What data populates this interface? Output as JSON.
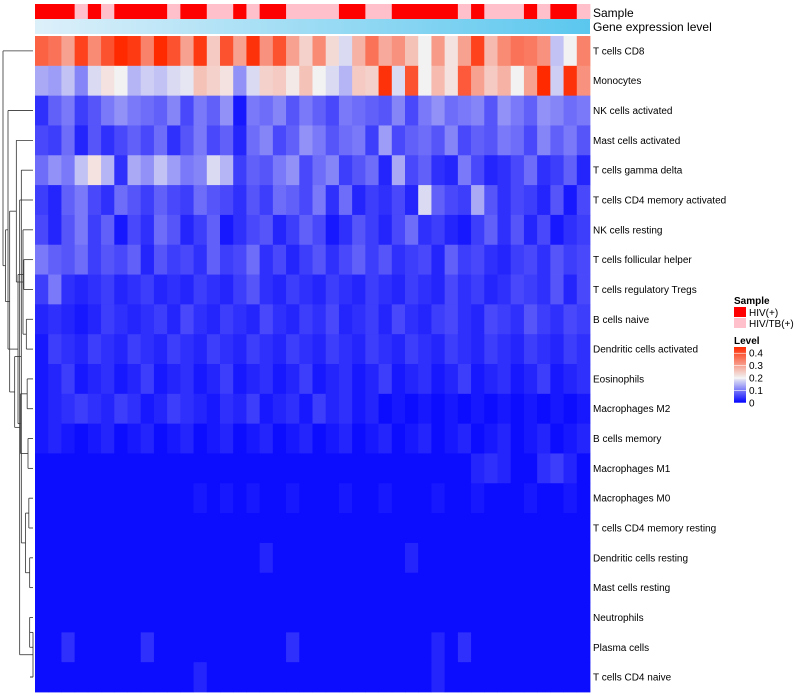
{
  "colors": {
    "sample_hiv": "#FF0000",
    "sample_hiv_tb": "#FFC0CB",
    "scale_low": "#0000FF",
    "scale_mid": "#F2F2F2",
    "scale_high": "#FF2A00",
    "gene_expr_low": "#DDF0FA",
    "gene_expr_high": "#5BC7EE",
    "dendrogram": "#333333"
  },
  "chart_data": {
    "type": "heatmap",
    "title": "",
    "row_labels": [
      "T cells CD8",
      "Monocytes",
      "NK cells activated",
      "Mast cells activated",
      "T cells gamma delta",
      "T cells CD4 memory activated",
      "NK cells resting",
      "T cells follicular helper",
      "T cells regulatory  Tregs",
      "B cells naive",
      "Dendritic cells activated",
      "Eosinophils",
      "Macrophages M2",
      "B cells memory",
      "Macrophages M1",
      "Macrophages M0",
      "T cells CD4 memory resting",
      "Dendritic cells resting",
      "Mast cells resting",
      "Neutrophils",
      "Plasma cells",
      "T cells CD4 naive"
    ],
    "n_columns": 42,
    "annotations": [
      {
        "label": "Sample",
        "values": [
          "HIV(+)",
          "HIV(+)",
          "HIV(+)",
          "HIV/TB(+)",
          "HIV(+)",
          "HIV/TB(+)",
          "HIV(+)",
          "HIV(+)",
          "HIV(+)",
          "HIV(+)",
          "HIV/TB(+)",
          "HIV(+)",
          "HIV(+)",
          "HIV/TB(+)",
          "HIV/TB(+)",
          "HIV(+)",
          "HIV/TB(+)",
          "HIV(+)",
          "HIV(+)",
          "HIV/TB(+)",
          "HIV/TB(+)",
          "HIV/TB(+)",
          "HIV/TB(+)",
          "HIV(+)",
          "HIV(+)",
          "HIV/TB(+)",
          "HIV/TB(+)",
          "HIV(+)",
          "HIV(+)",
          "HIV(+)",
          "HIV(+)",
          "HIV(+)",
          "HIV/TB(+)",
          "HIV(+)",
          "HIV/TB(+)",
          "HIV/TB(+)",
          "HIV/TB(+)",
          "HIV(+)",
          "HIV/TB(+)",
          "HIV(+)",
          "HIV(+)",
          "HIV/TB(+)"
        ]
      },
      {
        "label": "Gene expression level",
        "gradient": true
      }
    ],
    "legend": {
      "position": "right",
      "sample_title": "Sample",
      "sample_items": [
        {
          "label": "HIV(+)",
          "color": "#FF0000"
        },
        {
          "label": "HIV/TB(+)",
          "color": "#FFC0CB"
        }
      ],
      "level_title": "Level",
      "level_ticks": [
        {
          "value": 0.4,
          "label": "0.4"
        },
        {
          "value": 0.3,
          "label": "0.3"
        },
        {
          "value": 0.2,
          "label": "0.2"
        },
        {
          "value": 0.1,
          "label": "0.1"
        },
        {
          "value": 0.0,
          "label": "0"
        }
      ]
    },
    "color_scale": {
      "min": 0,
      "mid": 0.2,
      "max": 0.45
    },
    "row_dendrogram": {
      "parents": [
        -1,
        0,
        0,
        2,
        2,
        3,
        3,
        4,
        4,
        5,
        5,
        6,
        6,
        8,
        8,
        9,
        9,
        10,
        10,
        11,
        11,
        13,
        13,
        14,
        14,
        16,
        16,
        18,
        18,
        19,
        19,
        21,
        21,
        22,
        22,
        25,
        25,
        26,
        26,
        27,
        27,
        28,
        28
      ],
      "leaf_rows": [
        -1,
        0,
        -1,
        -1,
        -1,
        -1,
        -1,
        -1,
        -1,
        -1,
        -1,
        -1,
        -1,
        -1,
        -1,
        -1,
        -1,
        -1,
        1,
        -1,
        -1,
        -1,
        -1,
        -1,
        -1,
        -1,
        -1,
        -1,
        -1,
        -1,
        -1,
        -1,
        -1,
        -1,
        -1,
        -1,
        -1,
        -1,
        -1,
        -1,
        -1,
        -1,
        -1
      ],
      "heights": [
        0.36,
        0,
        0.33,
        0.28,
        0.3,
        0.22,
        0.2,
        0.24,
        0.18,
        0.14,
        0.16,
        0.12,
        0.13,
        0.15,
        0.11,
        0.1,
        0.09,
        0.09,
        0,
        0.08,
        0.07,
        0.07,
        0.06,
        0.06,
        0.05,
        0.05,
        0.04,
        0.04,
        0.035,
        0.035,
        0.03,
        0.03,
        0.02,
        0.02,
        0.015,
        0.015,
        0.01,
        0.01,
        0.01,
        0.005,
        0.005,
        0.005,
        0.005
      ]
    },
    "values": [
      [
        0.38,
        0.36,
        0.3,
        0.42,
        0.33,
        0.4,
        0.45,
        0.43,
        0.34,
        0.45,
        0.4,
        0.3,
        0.43,
        0.25,
        0.4,
        0.3,
        0.44,
        0.32,
        0.4,
        0.3,
        0.24,
        0.33,
        0.23,
        0.18,
        0.28,
        0.36,
        0.29,
        0.32,
        0.26,
        0.2,
        0.31,
        0.22,
        0.3,
        0.42,
        0.27,
        0.33,
        0.36,
        0.35,
        0.32,
        0.16,
        0.2,
        0.34
      ],
      [
        0.14,
        0.13,
        0.16,
        0.11,
        0.18,
        0.22,
        0.2,
        0.15,
        0.17,
        0.16,
        0.18,
        0.19,
        0.26,
        0.24,
        0.22,
        0.12,
        0.18,
        0.24,
        0.25,
        0.21,
        0.26,
        0.2,
        0.18,
        0.15,
        0.25,
        0.24,
        0.44,
        0.18,
        0.4,
        0.2,
        0.27,
        0.22,
        0.39,
        0.3,
        0.25,
        0.28,
        0.2,
        0.3,
        0.45,
        0.17,
        0.44,
        0.32
      ],
      [
        0.04,
        0.08,
        0.1,
        0.05,
        0.07,
        0.1,
        0.12,
        0.1,
        0.09,
        0.08,
        0.11,
        0.06,
        0.1,
        0.08,
        0.12,
        0.02,
        0.1,
        0.09,
        0.11,
        0.07,
        0.1,
        0.08,
        0.06,
        0.1,
        0.09,
        0.08,
        0.07,
        0.11,
        0.06,
        0.1,
        0.12,
        0.09,
        0.1,
        0.11,
        0.07,
        0.12,
        0.1,
        0.08,
        0.12,
        0.11,
        0.09,
        0.1
      ],
      [
        0.06,
        0.05,
        0.09,
        0.03,
        0.07,
        0.04,
        0.06,
        0.08,
        0.06,
        0.09,
        0.04,
        0.07,
        0.1,
        0.06,
        0.08,
        0.03,
        0.09,
        0.11,
        0.06,
        0.08,
        0.12,
        0.1,
        0.07,
        0.09,
        0.1,
        0.05,
        0.13,
        0.06,
        0.08,
        0.09,
        0.07,
        0.11,
        0.06,
        0.08,
        0.07,
        0.1,
        0.09,
        0.06,
        0.11,
        0.08,
        0.1,
        0.07
      ],
      [
        0.09,
        0.12,
        0.1,
        0.16,
        0.22,
        0.15,
        0.04,
        0.14,
        0.12,
        0.16,
        0.13,
        0.1,
        0.11,
        0.18,
        0.15,
        0.05,
        0.08,
        0.07,
        0.1,
        0.12,
        0.06,
        0.09,
        0.11,
        0.05,
        0.07,
        0.09,
        0.03,
        0.14,
        0.06,
        0.08,
        0.04,
        0.03,
        0.1,
        0.06,
        0.03,
        0.04,
        0.06,
        0.09,
        0.04,
        0.05,
        0.08,
        0.03
      ],
      [
        0.05,
        0.03,
        0.08,
        0.1,
        0.06,
        0.04,
        0.09,
        0.07,
        0.05,
        0.08,
        0.06,
        0.05,
        0.09,
        0.07,
        0.06,
        0.04,
        0.07,
        0.05,
        0.09,
        0.08,
        0.06,
        0.1,
        0.04,
        0.09,
        0.03,
        0.05,
        0.04,
        0.06,
        0.03,
        0.18,
        0.08,
        0.06,
        0.05,
        0.14,
        0.07,
        0.04,
        0.06,
        0.05,
        0.03,
        0.07,
        0.02,
        0.06
      ],
      [
        0.06,
        0.03,
        0.07,
        0.1,
        0.05,
        0.08,
        0.02,
        0.06,
        0.04,
        0.09,
        0.07,
        0.03,
        0.05,
        0.08,
        0.02,
        0.04,
        0.06,
        0.07,
        0.03,
        0.05,
        0.08,
        0.06,
        0.02,
        0.04,
        0.07,
        0.05,
        0.03,
        0.06,
        0.09,
        0.04,
        0.05,
        0.03,
        0.02,
        0.05,
        0.08,
        0.04,
        0.07,
        0.03,
        0.06,
        0.02,
        0.04,
        0.05
      ],
      [
        0.1,
        0.08,
        0.07,
        0.09,
        0.05,
        0.07,
        0.06,
        0.08,
        0.03,
        0.07,
        0.05,
        0.06,
        0.04,
        0.08,
        0.05,
        0.06,
        0.09,
        0.04,
        0.06,
        0.03,
        0.05,
        0.07,
        0.04,
        0.06,
        0.08,
        0.05,
        0.07,
        0.04,
        0.05,
        0.06,
        0.03,
        0.08,
        0.05,
        0.06,
        0.04,
        0.03,
        0.05,
        0.06,
        0.04,
        0.07,
        0.05,
        0.06
      ],
      [
        0.05,
        0.1,
        0.04,
        0.03,
        0.04,
        0.05,
        0.03,
        0.04,
        0.05,
        0.03,
        0.04,
        0.03,
        0.05,
        0.04,
        0.03,
        0.05,
        0.07,
        0.04,
        0.03,
        0.05,
        0.04,
        0.03,
        0.05,
        0.04,
        0.03,
        0.05,
        0.04,
        0.03,
        0.05,
        0.04,
        0.03,
        0.06,
        0.04,
        0.05,
        0.03,
        0.04,
        0.06,
        0.05,
        0.04,
        0.07,
        0.03,
        0.06
      ],
      [
        0.03,
        0.04,
        0.03,
        0.02,
        0.03,
        0.05,
        0.04,
        0.03,
        0.04,
        0.05,
        0.03,
        0.06,
        0.04,
        0.03,
        0.05,
        0.04,
        0.03,
        0.06,
        0.04,
        0.03,
        0.05,
        0.04,
        0.06,
        0.03,
        0.04,
        0.05,
        0.03,
        0.06,
        0.04,
        0.03,
        0.05,
        0.06,
        0.04,
        0.03,
        0.06,
        0.05,
        0.04,
        0.07,
        0.05,
        0.04,
        0.06,
        0.05
      ],
      [
        0.02,
        0.05,
        0.04,
        0.03,
        0.05,
        0.04,
        0.03,
        0.05,
        0.04,
        0.03,
        0.05,
        0.04,
        0.03,
        0.05,
        0.04,
        0.03,
        0.05,
        0.04,
        0.03,
        0.05,
        0.04,
        0.03,
        0.05,
        0.04,
        0.03,
        0.05,
        0.04,
        0.03,
        0.05,
        0.04,
        0.03,
        0.05,
        0.04,
        0.03,
        0.05,
        0.04,
        0.03,
        0.05,
        0.04,
        0.03,
        0.05,
        0.04
      ],
      [
        0.02,
        0.03,
        0.05,
        0.02,
        0.03,
        0.04,
        0.02,
        0.03,
        0.05,
        0.02,
        0.03,
        0.04,
        0.02,
        0.03,
        0.05,
        0.02,
        0.03,
        0.04,
        0.02,
        0.03,
        0.05,
        0.02,
        0.03,
        0.04,
        0.02,
        0.03,
        0.05,
        0.02,
        0.03,
        0.04,
        0.02,
        0.03,
        0.05,
        0.02,
        0.03,
        0.04,
        0.02,
        0.03,
        0.05,
        0.02,
        0.03,
        0.04
      ],
      [
        0.02,
        0.03,
        0.04,
        0.05,
        0.04,
        0.03,
        0.05,
        0.04,
        0.02,
        0.03,
        0.05,
        0.04,
        0.03,
        0.02,
        0.04,
        0.03,
        0.05,
        0.02,
        0.03,
        0.04,
        0.02,
        0.05,
        0.03,
        0.04,
        0.02,
        0.03,
        0.01,
        0.02,
        0.01,
        0.02,
        0.01,
        0.02,
        0.01,
        0.02,
        0.01,
        0.02,
        0.01,
        0.02,
        0.01,
        0.02,
        0.01,
        0.02
      ],
      [
        0.02,
        0.03,
        0.02,
        0.01,
        0.02,
        0.03,
        0.01,
        0.02,
        0.03,
        0.01,
        0.02,
        0.03,
        0.01,
        0.02,
        0.03,
        0.01,
        0.02,
        0.03,
        0.01,
        0.02,
        0.03,
        0.01,
        0.02,
        0.03,
        0.01,
        0.02,
        0.03,
        0.01,
        0.02,
        0.03,
        0.01,
        0.02,
        0.03,
        0.01,
        0.02,
        0.03,
        0.01,
        0.02,
        0.03,
        0.01,
        0.02,
        0.03
      ],
      [
        0.01,
        0.01,
        0.01,
        0.01,
        0.01,
        0.01,
        0.01,
        0.01,
        0.01,
        0.01,
        0.01,
        0.01,
        0.01,
        0.01,
        0.01,
        0.01,
        0.01,
        0.01,
        0.01,
        0.01,
        0.01,
        0.01,
        0.01,
        0.01,
        0.01,
        0.01,
        0.01,
        0.01,
        0.01,
        0.01,
        0.01,
        0.01,
        0.01,
        0.03,
        0.04,
        0.03,
        0.01,
        0.01,
        0.04,
        0.05,
        0.03,
        0.01
      ],
      [
        0.01,
        0.01,
        0.01,
        0.01,
        0.01,
        0.01,
        0.01,
        0.01,
        0.01,
        0.01,
        0.01,
        0.01,
        0.02,
        0.01,
        0.02,
        0.01,
        0.02,
        0.01,
        0.01,
        0.02,
        0.01,
        0.01,
        0.01,
        0.02,
        0.01,
        0.01,
        0.02,
        0.01,
        0.01,
        0.01,
        0.02,
        0.01,
        0.01,
        0.02,
        0.01,
        0.01,
        0.01,
        0.02,
        0.01,
        0.01,
        0.02,
        0.01
      ],
      [
        0.01,
        0.01,
        0.01,
        0.01,
        0.01,
        0.01,
        0.01,
        0.01,
        0.01,
        0.01,
        0.01,
        0.01,
        0.01,
        0.01,
        0.01,
        0.01,
        0.01,
        0.01,
        0.01,
        0.01,
        0.01,
        0.01,
        0.01,
        0.01,
        0.01,
        0.01,
        0.01,
        0.01,
        0.01,
        0.01,
        0.01,
        0.01,
        0.01,
        0.01,
        0.01,
        0.01,
        0.01,
        0.01,
        0.01,
        0.01,
        0.01,
        0.01
      ],
      [
        0.01,
        0.01,
        0.01,
        0.01,
        0.01,
        0.01,
        0.01,
        0.01,
        0.01,
        0.01,
        0.01,
        0.01,
        0.01,
        0.01,
        0.01,
        0.01,
        0.01,
        0.03,
        0.01,
        0.01,
        0.01,
        0.01,
        0.01,
        0.01,
        0.01,
        0.01,
        0.01,
        0.01,
        0.03,
        0.01,
        0.01,
        0.01,
        0.01,
        0.01,
        0.01,
        0.01,
        0.01,
        0.01,
        0.01,
        0.01,
        0.01,
        0.01
      ],
      [
        0.01,
        0.01,
        0.01,
        0.01,
        0.01,
        0.01,
        0.01,
        0.01,
        0.01,
        0.01,
        0.01,
        0.01,
        0.01,
        0.01,
        0.01,
        0.01,
        0.01,
        0.01,
        0.01,
        0.01,
        0.01,
        0.01,
        0.01,
        0.01,
        0.01,
        0.01,
        0.01,
        0.01,
        0.01,
        0.01,
        0.01,
        0.01,
        0.01,
        0.01,
        0.01,
        0.01,
        0.01,
        0.01,
        0.01,
        0.01,
        0.01,
        0.01
      ],
      [
        0.01,
        0.01,
        0.01,
        0.01,
        0.01,
        0.01,
        0.01,
        0.01,
        0.01,
        0.01,
        0.01,
        0.01,
        0.01,
        0.01,
        0.01,
        0.01,
        0.01,
        0.01,
        0.01,
        0.01,
        0.01,
        0.01,
        0.01,
        0.01,
        0.01,
        0.01,
        0.01,
        0.01,
        0.01,
        0.01,
        0.01,
        0.01,
        0.01,
        0.01,
        0.01,
        0.01,
        0.01,
        0.01,
        0.01,
        0.01,
        0.01,
        0.01
      ],
      [
        0.01,
        0.01,
        0.04,
        0.01,
        0.01,
        0.01,
        0.01,
        0.01,
        0.04,
        0.01,
        0.01,
        0.01,
        0.01,
        0.01,
        0.01,
        0.01,
        0.01,
        0.01,
        0.01,
        0.04,
        0.01,
        0.01,
        0.01,
        0.01,
        0.01,
        0.01,
        0.01,
        0.01,
        0.01,
        0.01,
        0.03,
        0.01,
        0.04,
        0.01,
        0.01,
        0.01,
        0.01,
        0.01,
        0.01,
        0.01,
        0.01,
        0.01
      ],
      [
        0.01,
        0.01,
        0.01,
        0.01,
        0.01,
        0.01,
        0.01,
        0.01,
        0.01,
        0.01,
        0.01,
        0.01,
        0.03,
        0.01,
        0.01,
        0.01,
        0.01,
        0.01,
        0.01,
        0.01,
        0.01,
        0.01,
        0.01,
        0.01,
        0.01,
        0.01,
        0.01,
        0.01,
        0.01,
        0.01,
        0.03,
        0.01,
        0.01,
        0.01,
        0.01,
        0.01,
        0.01,
        0.01,
        0.01,
        0.01,
        0.01,
        0.01
      ]
    ]
  }
}
